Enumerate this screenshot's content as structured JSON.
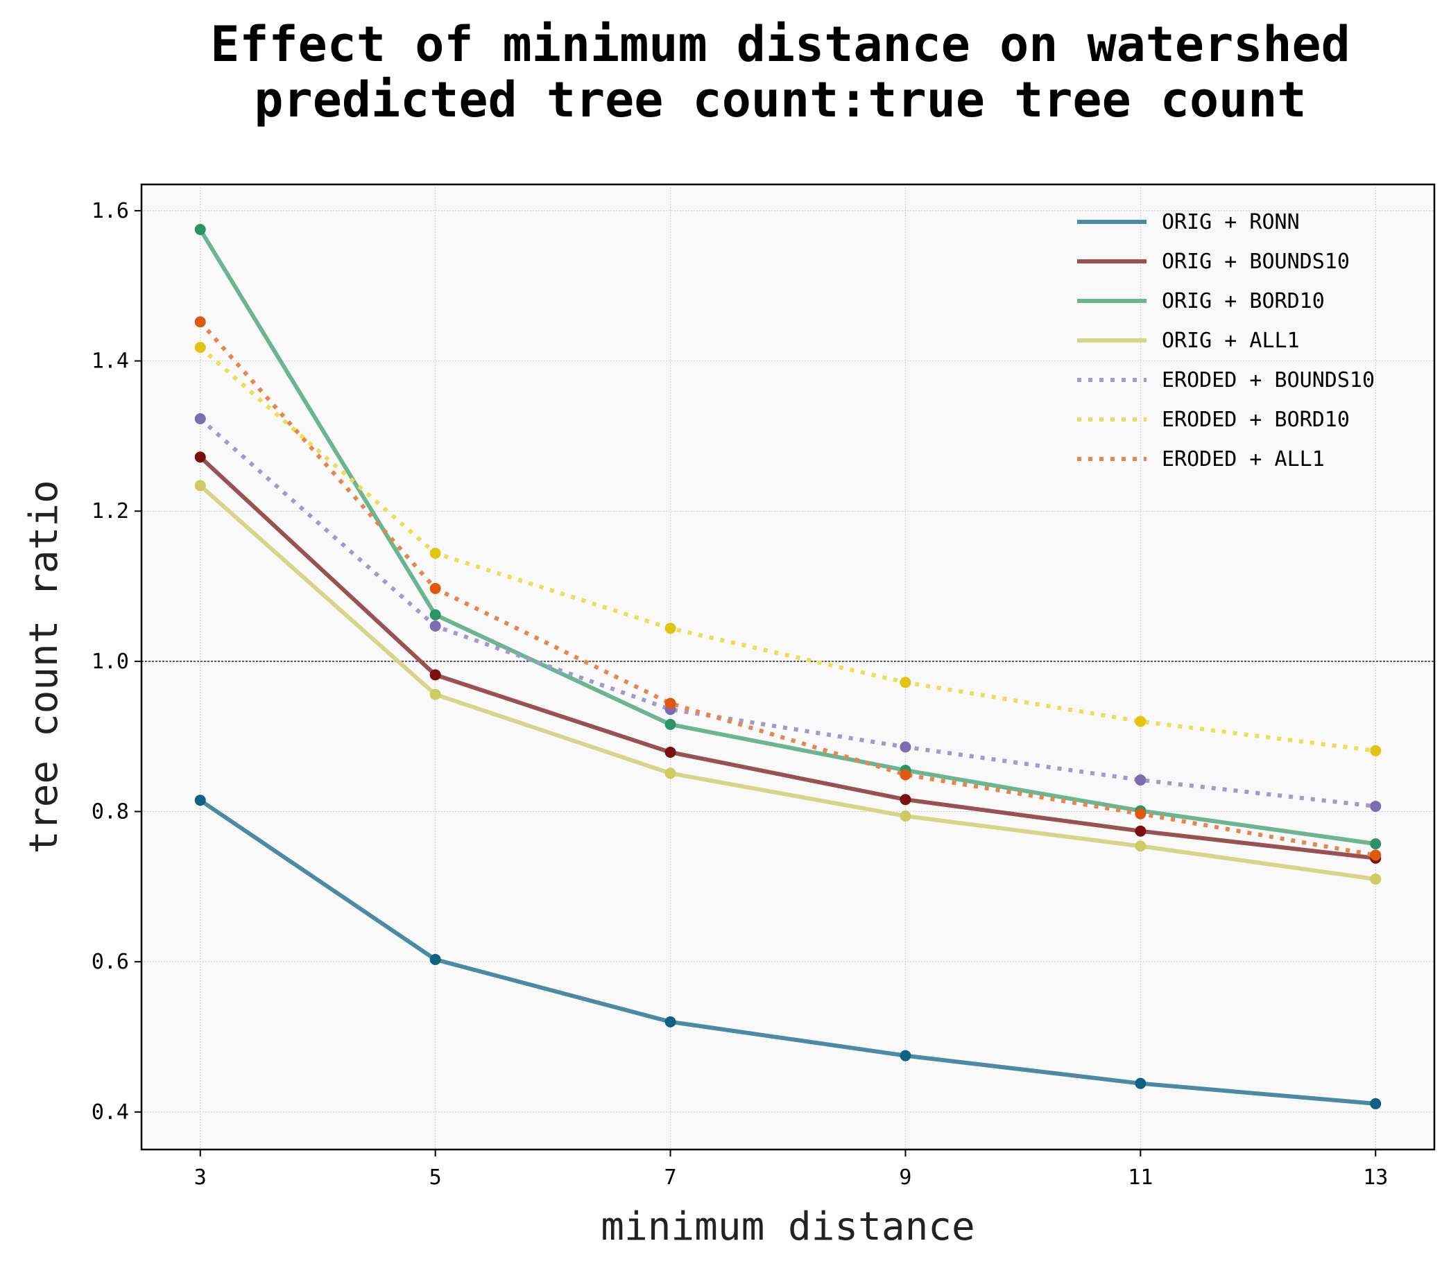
{
  "chart_data": {
    "type": "line",
    "title_line1": "Effect of minimum distance on watershed",
    "title_line2": "predicted tree count:true tree count",
    "xlabel": "minimum distance",
    "ylabel": "tree count ratio",
    "x": [
      3,
      5,
      7,
      9,
      11,
      13
    ],
    "xlim": [
      2.5,
      13.5
    ],
    "ylim": [
      0.35,
      1.635
    ],
    "yticks": [
      0.4,
      0.6,
      0.8,
      1.0,
      1.2,
      1.4,
      1.6
    ],
    "ytick_labels": [
      "0.4",
      "0.6",
      "0.8",
      "1.0",
      "1.2",
      "1.4",
      "1.6"
    ],
    "xtick_labels": [
      "3",
      "5",
      "7",
      "9",
      "11",
      "13"
    ],
    "reference_line": 1.0,
    "grid": true,
    "legend_position": "top-right",
    "series": [
      {
        "name": "ORIG + RONN",
        "values": [
          0.815,
          0.603,
          0.52,
          0.475,
          0.438,
          0.411
        ],
        "color": "#4a8aa2",
        "marker": "#0e6384",
        "dash": "solid"
      },
      {
        "name": "ORIG + BOUNDS10",
        "values": [
          1.272,
          0.982,
          0.879,
          0.816,
          0.774,
          0.738
        ],
        "color": "#995253",
        "marker": "#7a0f10",
        "dash": "solid"
      },
      {
        "name": "ORIG + BORD10",
        "values": [
          1.575,
          1.062,
          0.916,
          0.855,
          0.801,
          0.757
        ],
        "color": "#6bb592",
        "marker": "#2b9466",
        "dash": "solid"
      },
      {
        "name": "ORIG + ALL1",
        "values": [
          1.234,
          0.956,
          0.851,
          0.794,
          0.754,
          0.71
        ],
        "color": "#d7d588",
        "marker": "#cfcb63",
        "dash": "solid"
      },
      {
        "name": "ERODED + BOUNDS10",
        "values": [
          1.323,
          1.047,
          0.936,
          0.886,
          0.842,
          0.807
        ],
        "color": "#a39ac9",
        "marker": "#7c6cb0",
        "dash": "dotted"
      },
      {
        "name": "ERODED + BORD10",
        "values": [
          1.418,
          1.144,
          1.044,
          0.972,
          0.92,
          0.881
        ],
        "color": "#eedd55",
        "marker": "#e3c413",
        "dash": "dotted"
      },
      {
        "name": "ERODED + ALL1",
        "values": [
          1.452,
          1.097,
          0.944,
          0.849,
          0.797,
          0.742
        ],
        "color": "#e4864d",
        "marker": "#dd5a0c",
        "dash": "dotted"
      }
    ]
  }
}
